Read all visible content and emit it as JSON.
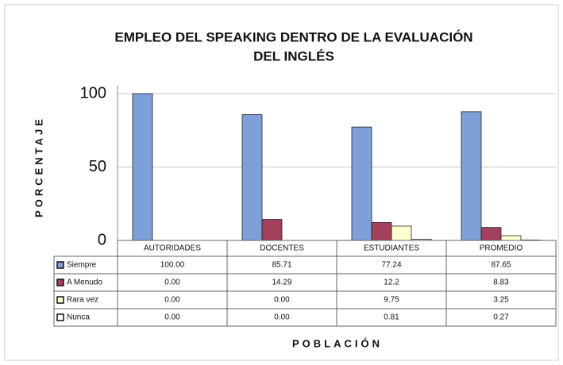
{
  "chart_data": {
    "type": "bar",
    "title": [
      "EMPLEO DEL SPEAKING DENTRO DE LA EVALUACIÓN",
      "DEL INGLÉS"
    ],
    "y_label": "PORCENTAJE",
    "x_label": "POBLACIÓN",
    "categories": [
      "AUTORIDADES",
      "DOCENTES",
      "ESTUDIANTES",
      "PROMEDIO"
    ],
    "series": [
      {
        "name": "Siempre",
        "color": "#7f9fd8",
        "values": [
          100,
          85.71,
          77.24,
          87.65
        ],
        "value_labels": [
          "100.00",
          "85.71",
          "77.24",
          "87.65"
        ]
      },
      {
        "name": "A Menudo",
        "color": "#a3415c",
        "values": [
          0,
          14.29,
          12.2,
          8.83
        ],
        "value_labels": [
          "0.00",
          "14.29",
          "12.2",
          "8.83"
        ]
      },
      {
        "name": "Rara vez",
        "color": "#ffffd0",
        "values": [
          0,
          0,
          9.75,
          3.25
        ],
        "value_labels": [
          "0.00",
          "0.00",
          "9.75",
          "3.25"
        ]
      },
      {
        "name": "Nunca",
        "color": "#ffffff",
        "values": [
          0,
          0,
          0.81,
          0.27
        ],
        "value_labels": [
          "0.00",
          "0.00",
          "0.81",
          "0.27"
        ]
      }
    ],
    "ylim": [
      0,
      100
    ],
    "yticks": [
      0,
      50,
      100
    ],
    "grid": true
  }
}
